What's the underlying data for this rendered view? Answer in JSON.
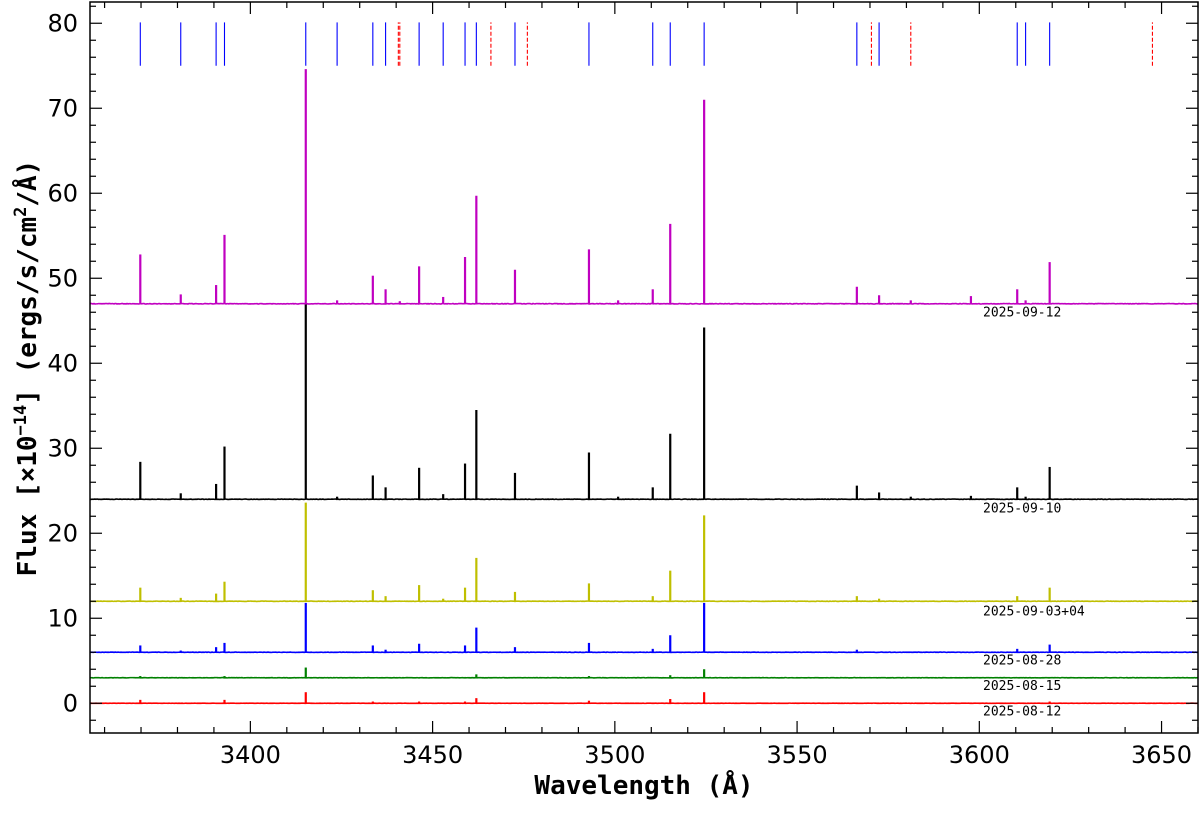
{
  "chart_data": {
    "type": "line",
    "xlabel": "Wavelength (Å)",
    "ylabel_prefix": "Flux [×10",
    "ylabel_exp": "−14",
    "ylabel_suffix": "] (ergs/s/cm",
    "ylabel_exp2": "2",
    "ylabel_end": "/Å)",
    "xlim": [
      3356,
      3660
    ],
    "ylim": [
      -3.5,
      82.5
    ],
    "x_ticks": [
      3400,
      3450,
      3500,
      3550,
      3600,
      3650
    ],
    "x_tick_labels": [
      "3400",
      "3450",
      "3500",
      "3550",
      "3600",
      "3650"
    ],
    "y_ticks": [
      0,
      10,
      20,
      30,
      40,
      50,
      60,
      70,
      80
    ],
    "y_tick_labels": [
      "0",
      "10",
      "20",
      "30",
      "40",
      "50",
      "60",
      "70",
      "80"
    ],
    "grid": false,
    "series": [
      {
        "name": "2025-08-12",
        "color": "#ff0000",
        "baseline": 0,
        "lines": [
          [
            3369.8,
            0.4
          ],
          [
            3392.9,
            0.4
          ],
          [
            3415.2,
            1.3
          ],
          [
            3433.6,
            0.2
          ],
          [
            3446.3,
            0.2
          ],
          [
            3458.9,
            0.2
          ],
          [
            3462.0,
            0.6
          ],
          [
            3492.9,
            0.3
          ],
          [
            3515.2,
            0.5
          ],
          [
            3524.5,
            1.3
          ],
          [
            3619.3,
            0.2
          ]
        ]
      },
      {
        "name": "2025-08-15",
        "color": "#008000",
        "baseline": 3,
        "lines": [
          [
            3369.8,
            0.2
          ],
          [
            3392.9,
            0.2
          ],
          [
            3415.2,
            1.2
          ],
          [
            3462.0,
            0.4
          ],
          [
            3492.9,
            0.2
          ],
          [
            3515.2,
            0.3
          ],
          [
            3524.5,
            1.0
          ]
        ]
      },
      {
        "name": "2025-08-28",
        "color": "#0000ff",
        "baseline": 6,
        "lines": [
          [
            3369.8,
            0.8
          ],
          [
            3380.9,
            0.2
          ],
          [
            3390.6,
            0.6
          ],
          [
            3392.9,
            1.1
          ],
          [
            3415.2,
            5.8
          ],
          [
            3433.6,
            0.8
          ],
          [
            3437.1,
            0.3
          ],
          [
            3446.3,
            1.0
          ],
          [
            3458.9,
            0.8
          ],
          [
            3462.0,
            2.9
          ],
          [
            3472.6,
            0.6
          ],
          [
            3492.9,
            1.1
          ],
          [
            3510.4,
            0.4
          ],
          [
            3515.2,
            2.0
          ],
          [
            3524.5,
            5.8
          ],
          [
            3566.4,
            0.3
          ],
          [
            3610.4,
            0.4
          ],
          [
            3619.3,
            0.9
          ]
        ]
      },
      {
        "name": "2025-09-03+04",
        "color": "#bfbf00",
        "baseline": 12,
        "lines": [
          [
            3369.8,
            1.6
          ],
          [
            3380.9,
            0.4
          ],
          [
            3390.6,
            0.9
          ],
          [
            3392.9,
            2.3
          ],
          [
            3415.2,
            11.6
          ],
          [
            3433.6,
            1.3
          ],
          [
            3437.1,
            0.6
          ],
          [
            3446.3,
            1.9
          ],
          [
            3452.9,
            0.3
          ],
          [
            3458.9,
            1.6
          ],
          [
            3462.0,
            5.1
          ],
          [
            3472.6,
            1.1
          ],
          [
            3492.9,
            2.1
          ],
          [
            3510.4,
            0.6
          ],
          [
            3515.2,
            3.6
          ],
          [
            3524.5,
            10.1
          ],
          [
            3566.4,
            0.6
          ],
          [
            3572.5,
            0.3
          ],
          [
            3610.4,
            0.6
          ],
          [
            3619.3,
            1.6
          ]
        ]
      },
      {
        "name": "2025-09-10",
        "color": "#000000",
        "baseline": 24,
        "lines": [
          [
            3369.8,
            4.4
          ],
          [
            3380.9,
            0.7
          ],
          [
            3390.6,
            1.8
          ],
          [
            3392.9,
            6.2
          ],
          [
            3415.2,
            23.0
          ],
          [
            3423.8,
            0.3
          ],
          [
            3433.6,
            2.8
          ],
          [
            3437.1,
            1.4
          ],
          [
            3446.3,
            3.7
          ],
          [
            3452.9,
            0.6
          ],
          [
            3458.9,
            4.2
          ],
          [
            3462.0,
            10.5
          ],
          [
            3472.6,
            3.1
          ],
          [
            3492.9,
            5.5
          ],
          [
            3500.9,
            0.3
          ],
          [
            3510.4,
            1.4
          ],
          [
            3515.2,
            7.7
          ],
          [
            3524.5,
            20.2
          ],
          [
            3566.4,
            1.6
          ],
          [
            3572.5,
            0.8
          ],
          [
            3581.2,
            0.3
          ],
          [
            3597.7,
            0.4
          ],
          [
            3610.4,
            1.4
          ],
          [
            3612.7,
            0.3
          ],
          [
            3619.3,
            3.8
          ]
        ]
      },
      {
        "name": "2025-09-12",
        "color": "#c000c0",
        "baseline": 47,
        "lines": [
          [
            3369.8,
            5.8
          ],
          [
            3380.9,
            1.1
          ],
          [
            3390.6,
            2.2
          ],
          [
            3392.9,
            8.1
          ],
          [
            3415.2,
            27.6
          ],
          [
            3423.8,
            0.4
          ],
          [
            3433.6,
            3.3
          ],
          [
            3437.1,
            1.7
          ],
          [
            3441.0,
            0.3
          ],
          [
            3446.3,
            4.4
          ],
          [
            3452.9,
            0.8
          ],
          [
            3458.9,
            5.5
          ],
          [
            3462.0,
            12.7
          ],
          [
            3472.6,
            4.0
          ],
          [
            3492.9,
            6.4
          ],
          [
            3500.9,
            0.4
          ],
          [
            3510.4,
            1.7
          ],
          [
            3515.2,
            9.4
          ],
          [
            3524.5,
            24.0
          ],
          [
            3566.4,
            2.0
          ],
          [
            3572.5,
            1.0
          ],
          [
            3581.2,
            0.4
          ],
          [
            3597.7,
            0.9
          ],
          [
            3610.4,
            1.7
          ],
          [
            3612.7,
            0.4
          ],
          [
            3619.3,
            4.9
          ]
        ]
      }
    ],
    "line_markers": {
      "y_range": [
        75,
        80.1
      ],
      "solid_color": "#0000ff",
      "dashed_color": "#ff0000",
      "solid": [
        3369.8,
        3380.9,
        3390.6,
        3392.9,
        3415.2,
        3423.8,
        3433.6,
        3437.1,
        3446.3,
        3452.9,
        3458.9,
        3462.0,
        3472.6,
        3492.9,
        3510.4,
        3515.2,
        3524.5,
        3566.4,
        3572.5,
        3610.4,
        3612.7,
        3619.3
      ],
      "dashed": [
        3440.6,
        3441.0,
        3466.0,
        3476.0,
        3570.4,
        3581.2,
        3647.5
      ]
    }
  }
}
